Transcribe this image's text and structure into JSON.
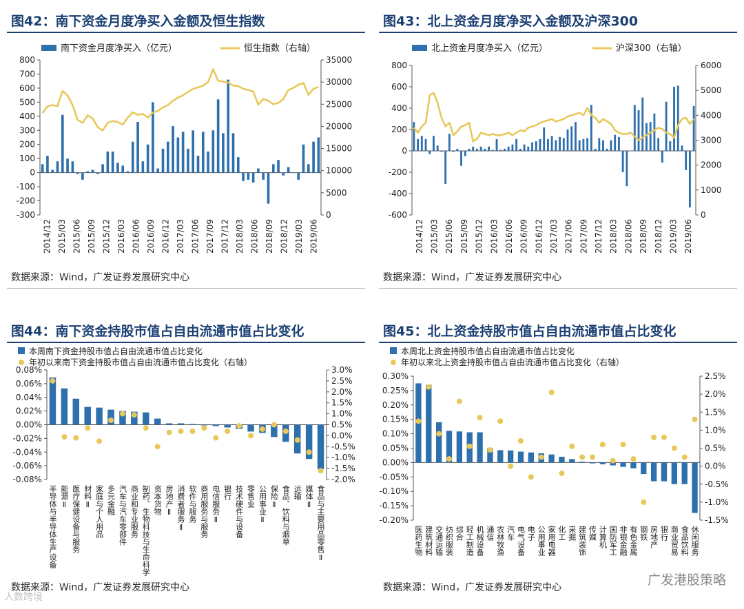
{
  "colors": {
    "bar": "#2e6fad",
    "line": "#e8c85a",
    "dot": "#e8c85a",
    "title": "#1b3f73"
  },
  "watermark_text": "广发港股策略",
  "watermark_small": "人数跨境",
  "chart_data": [
    {
      "id": "fig42",
      "type": "bar+line",
      "title": "图42：南下资金月度净买入金额及恒生指数",
      "source": "数据来源：Wind，广发证券发展研究中心",
      "legend": [
        "南下资金月度净买入（亿元）",
        "恒生指数（右轴）"
      ],
      "x_tick_labels": [
        "2014/12",
        "2015/03",
        "2015/06",
        "2015/09",
        "2015/12",
        "2016/03",
        "2016/06",
        "2016/09",
        "2016/12",
        "2017/03",
        "2017/06",
        "2017/09",
        "2017/12",
        "2018/03",
        "2018/06",
        "2018/09",
        "2018/12",
        "2019/03",
        "2019/06"
      ],
      "y_left": {
        "min": -300,
        "max": 800,
        "ticks": [
          -300,
          -200,
          -100,
          0,
          100,
          200,
          300,
          400,
          500,
          600,
          700,
          800
        ]
      },
      "y_right": {
        "min": 0,
        "max": 35000,
        "ticks": [
          0,
          5000,
          10000,
          15000,
          20000,
          25000,
          30000,
          35000
        ]
      },
      "bars": [
        60,
        120,
        20,
        80,
        410,
        100,
        80,
        -10,
        -50,
        10,
        20,
        -10,
        60,
        150,
        150,
        70,
        50,
        10,
        220,
        360,
        80,
        200,
        500,
        30,
        170,
        220,
        330,
        250,
        290,
        170,
        300,
        120,
        290,
        150,
        300,
        520,
        280,
        660,
        280,
        110,
        -60,
        -50,
        -70,
        30,
        -50,
        -220,
        60,
        90,
        -20,
        40,
        0,
        -50,
        200,
        60,
        220,
        250
      ],
      "line": [
        23000,
        24500,
        24800,
        24600,
        28000,
        27000,
        24800,
        21500,
        20800,
        22500,
        21800,
        19800,
        19100,
        20800,
        21200,
        21000,
        20400,
        22000,
        23200,
        22600,
        22800,
        22000,
        23100,
        23500,
        24300,
        24800,
        25800,
        26500,
        27000,
        27800,
        28500,
        28800,
        29200,
        30000,
        32900,
        30300,
        30100,
        29900,
        29200,
        29100,
        28500,
        28200,
        27900,
        24900,
        26200,
        25800,
        25000,
        25300,
        26200,
        28200,
        28700,
        29400,
        29800,
        27100,
        28500,
        28900
      ]
    },
    {
      "id": "fig43",
      "type": "bar+line",
      "title": "图43：北上资金月度净买入金额及沪深300",
      "source": "数据来源：Wind，广发证券发展研究中心",
      "legend": [
        "北上资金月度净买入（亿元）",
        "沪深300（右轴）"
      ],
      "x_tick_labels": [
        "2014/12",
        "2015/03",
        "2015/06",
        "2015/09",
        "2015/12",
        "2016/03",
        "2016/06",
        "2016/09",
        "2016/12",
        "2017/03",
        "2017/06",
        "2017/09",
        "2017/12",
        "2018/03",
        "2018/06",
        "2018/09",
        "2018/12",
        "2019/03",
        "2019/06"
      ],
      "y_left": {
        "min": -600,
        "max": 800,
        "ticks": [
          -600,
          -400,
          -200,
          0,
          200,
          400,
          600,
          800
        ]
      },
      "y_right": {
        "min": 0,
        "max": 6000,
        "ticks": [
          0,
          1000,
          2000,
          3000,
          4000,
          5000,
          6000
        ]
      },
      "bars": [
        270,
        110,
        140,
        110,
        -30,
        140,
        50,
        -10,
        -310,
        160,
        -10,
        20,
        -140,
        -50,
        20,
        40,
        20,
        40,
        20,
        40,
        10,
        110,
        10,
        20,
        40,
        60,
        110,
        20,
        60,
        40,
        80,
        90,
        110,
        220,
        110,
        140,
        100,
        130,
        120,
        200,
        230,
        270,
        100,
        110,
        120,
        430,
        20,
        120,
        100,
        20,
        100,
        150,
        130,
        -200,
        -330,
        0,
        430,
        380,
        500,
        260,
        270,
        350,
        120,
        -110,
        460,
        90,
        600,
        610,
        50,
        -180,
        -530,
        420
      ],
      "line": [
        3500,
        3300,
        3550,
        3700,
        4800,
        4900,
        4500,
        3900,
        3550,
        3700,
        3200,
        3350,
        3550,
        3600,
        3700,
        2950,
        3050,
        3300,
        3250,
        3200,
        3250,
        3200,
        3200,
        3250,
        3300,
        3200,
        3300,
        3400,
        3350,
        3500,
        3550,
        3600,
        3700,
        3750,
        3800,
        3850,
        3750,
        3800,
        3850,
        3950,
        4000,
        4050,
        4100,
        4000,
        4300,
        4000,
        3900,
        3700,
        3850,
        3750,
        3650,
        3400,
        3300,
        3250,
        3250,
        3300,
        3150,
        3000,
        3100,
        3200,
        3300,
        3400,
        3500,
        3450,
        3300,
        3250,
        3100,
        3600,
        3850,
        3900,
        3650,
        3850
      ]
    },
    {
      "id": "fig44",
      "type": "bar+scatter",
      "title": "图44：南下资金持股市值占自由流通市值占比变化",
      "source": "数据来源：Wind，广发证券发展研究中心",
      "legend": [
        "本周南下资金持股市值占自由流通市值占比变化",
        "年初以来南下资金持股市值占自由流通市值占比变化（右轴）"
      ],
      "y_left_labels": [
        "0.08%",
        "0.06%",
        "0.04%",
        "0.02%",
        "0.00%",
        "-0.02%",
        "-0.04%",
        "-0.06%",
        "-0.08%"
      ],
      "y_right_labels": [
        "3.0%",
        "2.5%",
        "2.0%",
        "1.5%",
        "1.0%",
        "0.5%",
        "0.0%",
        "-0.5%",
        "-1.0%",
        "-1.5%",
        "-2.0%"
      ],
      "y_left": {
        "min": -0.08,
        "max": 0.08
      },
      "y_right": {
        "min": -2.0,
        "max": 3.0
      },
      "categories": [
        "半导体与半导体生产设备",
        "能源Ⅱ",
        "医疗保健设备与服务",
        "材料Ⅱ",
        "家庭与个人用品",
        "多元金融",
        "汽车与汽车零部件",
        "商业和专业服务",
        "制药、生物科技与生命科学",
        "资本货物",
        "房地产Ⅱ",
        "消费者服务Ⅱ",
        "软件与服务",
        "商用服务与服务",
        "电信服务Ⅱ",
        "银行",
        "技术硬件与设备",
        "零售业",
        "公用事业Ⅱ",
        "保险Ⅱ",
        "食品、饮料与烟草",
        "运输",
        "媒体Ⅱ",
        "食品与主要用品零售Ⅱ"
      ],
      "values": [
        0.069,
        0.053,
        0.038,
        0.026,
        0.025,
        0.022,
        0.02,
        0.019,
        0.018,
        0.009,
        0.002,
        0.002,
        0.001,
        -0.001,
        -0.002,
        -0.004,
        -0.006,
        -0.01,
        -0.012,
        -0.018,
        -0.025,
        -0.042,
        -0.05,
        -0.065
      ],
      "secondary": [
        2.5,
        -0.05,
        -0.1,
        0.35,
        -0.25,
        0.7,
        1.0,
        0.95,
        0.35,
        -0.5,
        0.15,
        0.2,
        0.2,
        0.35,
        -0.1,
        0.2,
        0.45,
        0.0,
        0.3,
        0.5,
        0.2,
        -0.2,
        -0.75,
        -1.6
      ]
    },
    {
      "id": "fig45",
      "type": "bar+scatter",
      "title": "图45：北上资金持股市值占自由流通市值占比变化",
      "source": "数据来源：Wind，广发证券发展研究中心",
      "legend": [
        "本周北上资金持股市值占自由流通市值占比变化",
        "年初以来北上资金持股市值占自由流通市值占比变化（右轴）"
      ],
      "y_left_labels": [
        "0.30%",
        "0.25%",
        "0.20%",
        "0.15%",
        "0.10%",
        "0.05%",
        "0.00%",
        "-0.05%",
        "-0.10%",
        "-0.15%",
        "-0.20%"
      ],
      "y_right_labels": [
        "2.5%",
        "2.0%",
        "1.5%",
        "1.0%",
        "0.5%",
        "0.0%",
        "-0.5%",
        "-1.0%",
        "-1.5%"
      ],
      "y_left": {
        "min": -0.2,
        "max": 0.3
      },
      "y_right": {
        "min": -1.5,
        "max": 2.5
      },
      "categories": [
        "医药生物",
        "建筑材料",
        "交通运输",
        "纺织服装",
        "综合",
        "轻工制造",
        "机械设备",
        "通信",
        "农林牧渔",
        "汽车",
        "电气设备",
        "电子",
        "公用事业",
        "家用电器",
        "化工",
        "采掘",
        "建筑装饰",
        "传媒",
        "计算机",
        "国防军工",
        "非银金融",
        "有色金属",
        "钢铁",
        "房地产",
        "银行",
        "商业贸易",
        "食品饮料",
        "休闲服务"
      ],
      "values": [
        0.275,
        0.27,
        0.14,
        0.11,
        0.108,
        0.105,
        0.105,
        0.05,
        0.043,
        0.042,
        0.038,
        0.035,
        0.032,
        0.028,
        0.02,
        0.012,
        0.003,
        -0.003,
        -0.006,
        -0.01,
        -0.015,
        -0.02,
        -0.04,
        -0.065,
        -0.065,
        -0.075,
        -0.075,
        -0.175
      ],
      "secondary": [
        1.25,
        2.2,
        0.9,
        0.2,
        1.8,
        0.55,
        1.35,
        0.45,
        1.25,
        0.0,
        0.7,
        -0.3,
        0.25,
        2.05,
        -0.2,
        0.55,
        0.25,
        0.25,
        0.6,
        0.15,
        0.6,
        0.2,
        -1.0,
        0.8,
        0.8,
        0.5,
        0.25,
        1.3
      ]
    }
  ]
}
